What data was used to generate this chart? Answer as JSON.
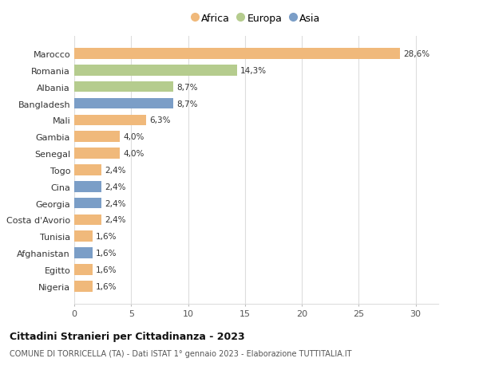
{
  "countries": [
    "Marocco",
    "Romania",
    "Albania",
    "Bangladesh",
    "Mali",
    "Gambia",
    "Senegal",
    "Togo",
    "Cina",
    "Georgia",
    "Costa d'Avorio",
    "Tunisia",
    "Afghanistan",
    "Egitto",
    "Nigeria"
  ],
  "values": [
    28.6,
    14.3,
    8.7,
    8.7,
    6.3,
    4.0,
    4.0,
    2.4,
    2.4,
    2.4,
    2.4,
    1.6,
    1.6,
    1.6,
    1.6
  ],
  "labels": [
    "28,6%",
    "14,3%",
    "8,7%",
    "8,7%",
    "6,3%",
    "4,0%",
    "4,0%",
    "2,4%",
    "2,4%",
    "2,4%",
    "2,4%",
    "1,6%",
    "1,6%",
    "1,6%",
    "1,6%"
  ],
  "continent": [
    "Africa",
    "Europa",
    "Europa",
    "Asia",
    "Africa",
    "Africa",
    "Africa",
    "Africa",
    "Asia",
    "Asia",
    "Africa",
    "Africa",
    "Asia",
    "Africa",
    "Africa"
  ],
  "colors": {
    "Africa": "#F0B97B",
    "Europa": "#B5CC8E",
    "Asia": "#7B9EC7"
  },
  "legend": [
    "Africa",
    "Europa",
    "Asia"
  ],
  "title": "Cittadini Stranieri per Cittadinanza - 2023",
  "subtitle": "COMUNE DI TORRICELLA (TA) - Dati ISTAT 1° gennaio 2023 - Elaborazione TUTTITALIA.IT",
  "xlim": [
    0,
    32
  ],
  "xticks": [
    0,
    5,
    10,
    15,
    20,
    25,
    30
  ],
  "bg_color": "#ffffff",
  "grid_color": "#dddddd"
}
